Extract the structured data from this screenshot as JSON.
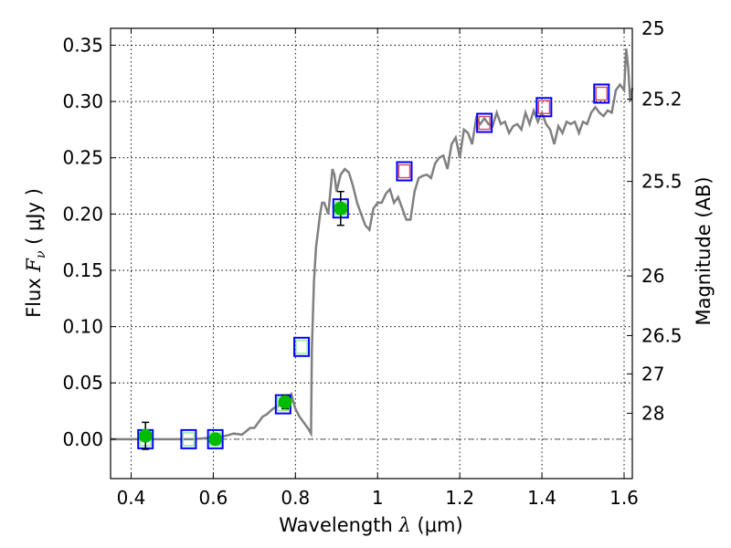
{
  "chart_data": {
    "type": "scatter",
    "xlabel": {
      "prefix": "Wavelength  ",
      "symbol": "λ",
      "unit": " (μm)"
    },
    "ylabel": {
      "prefix": "Flux  ",
      "symbol": "F",
      "subscript": "ν",
      "unit": "  ( μJy )"
    },
    "ylabel_right": "Magnitude (AB)",
    "xlim": [
      0.35,
      1.62
    ],
    "ylim": [
      -0.035,
      0.365
    ],
    "grid": true,
    "x_ticks": [
      0.4,
      0.6,
      0.8,
      1.0,
      1.2,
      1.4,
      1.6
    ],
    "x_tick_labels": [
      "0.4",
      "0.6",
      "0.8",
      "1",
      "1.2",
      "1.4",
      "1.6"
    ],
    "y_ticks": [
      0.0,
      0.05,
      0.1,
      0.15,
      0.2,
      0.25,
      0.3,
      0.35
    ],
    "y_tick_labels": [
      "0.00",
      "0.05",
      "0.10",
      "0.15",
      "0.20",
      "0.25",
      "0.30",
      "0.35"
    ],
    "right_ticks": [
      {
        "flux": 0.365,
        "label": "25"
      },
      {
        "flux": 0.302,
        "label": "25.2"
      },
      {
        "flux": 0.229,
        "label": "25.5"
      },
      {
        "flux": 0.145,
        "label": "26"
      },
      {
        "flux": 0.092,
        "label": "26.5"
      },
      {
        "flux": 0.058,
        "label": "27"
      },
      {
        "flux": 0.023,
        "label": "28"
      }
    ],
    "colors": {
      "model": "#808080",
      "observed": "#00bb00",
      "box_edge": "#0000ff",
      "optical_inner": "#90ee90",
      "nir_inner": "#dd4466",
      "errorbar": "#000000"
    },
    "series": [
      {
        "name": "model-spectrum",
        "type": "line",
        "x": [
          0.35,
          0.55,
          0.62,
          0.65,
          0.67,
          0.69,
          0.7,
          0.72,
          0.73,
          0.745,
          0.76,
          0.78,
          0.79,
          0.8,
          0.81,
          0.82,
          0.83,
          0.838,
          0.84,
          0.845,
          0.85,
          0.86,
          0.865,
          0.87,
          0.88,
          0.89,
          0.895,
          0.9,
          0.91,
          0.92,
          0.93,
          0.94,
          0.95,
          0.96,
          0.97,
          0.98,
          0.99,
          1.0,
          1.01,
          1.02,
          1.03,
          1.04,
          1.05,
          1.06,
          1.07,
          1.08,
          1.09,
          1.1,
          1.11,
          1.12,
          1.13,
          1.14,
          1.15,
          1.16,
          1.17,
          1.18,
          1.19,
          1.2,
          1.21,
          1.22,
          1.23,
          1.24,
          1.25,
          1.26,
          1.27,
          1.28,
          1.29,
          1.3,
          1.31,
          1.32,
          1.33,
          1.34,
          1.35,
          1.36,
          1.37,
          1.38,
          1.39,
          1.4,
          1.41,
          1.42,
          1.43,
          1.44,
          1.45,
          1.46,
          1.47,
          1.48,
          1.49,
          1.5,
          1.51,
          1.52,
          1.53,
          1.54,
          1.55,
          1.56,
          1.57,
          1.58,
          1.59,
          1.6,
          1.605,
          1.61,
          1.615,
          1.62
        ],
        "y": [
          0.0,
          0.0,
          0.002,
          0.005,
          0.004,
          0.01,
          0.01,
          0.02,
          0.022,
          0.027,
          0.03,
          0.035,
          0.04,
          0.027,
          0.02,
          0.015,
          0.01,
          0.005,
          0.08,
          0.14,
          0.17,
          0.2,
          0.21,
          0.21,
          0.2,
          0.24,
          0.235,
          0.22,
          0.235,
          0.24,
          0.237,
          0.225,
          0.21,
          0.2,
          0.19,
          0.186,
          0.205,
          0.21,
          0.21,
          0.218,
          0.222,
          0.21,
          0.215,
          0.205,
          0.195,
          0.195,
          0.22,
          0.232,
          0.234,
          0.235,
          0.232,
          0.245,
          0.25,
          0.252,
          0.24,
          0.262,
          0.268,
          0.25,
          0.275,
          0.272,
          0.262,
          0.285,
          0.28,
          0.285,
          0.28,
          0.278,
          0.29,
          0.28,
          0.282,
          0.272,
          0.278,
          0.28,
          0.275,
          0.29,
          0.28,
          0.292,
          0.282,
          0.29,
          0.28,
          0.275,
          0.262,
          0.278,
          0.272,
          0.282,
          0.28,
          0.282,
          0.272,
          0.282,
          0.28,
          0.29,
          0.295,
          0.29,
          0.287,
          0.292,
          0.29,
          0.31,
          0.315,
          0.31,
          0.347,
          0.33,
          0.3,
          0.312
        ]
      },
      {
        "name": "model-band-fluxes",
        "type": "square-marker",
        "x": [
          0.435,
          0.54,
          0.605,
          0.77,
          0.815,
          0.91,
          1.065,
          1.26,
          1.405,
          1.545
        ],
        "y": [
          0.0,
          0.0,
          0.0,
          0.031,
          0.082,
          0.205,
          0.238,
          0.281,
          0.295,
          0.307
        ],
        "inner": [
          "optical",
          "optical",
          "optical",
          "optical",
          "optical",
          "optical",
          "nir",
          "nir",
          "nir",
          "nir"
        ]
      },
      {
        "name": "observed-photometry",
        "type": "errorbar",
        "x": [
          0.435,
          0.605,
          0.775,
          0.91
        ],
        "y": [
          0.003,
          0.0,
          0.033,
          0.205
        ],
        "err": [
          0.012,
          0.003,
          0.006,
          0.015
        ]
      }
    ]
  }
}
